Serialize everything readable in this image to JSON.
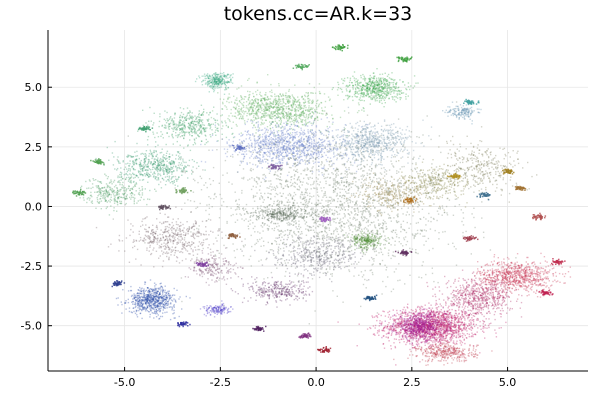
{
  "chart_data": {
    "type": "scatter",
    "title": "tokens.cc=AR.k=33",
    "xlabel": "",
    "ylabel": "",
    "xlim": [
      -7.0,
      7.1
    ],
    "ylim": [
      -6.9,
      7.4
    ],
    "grid": true,
    "legend": "none",
    "x_ticks": [
      -5.0,
      -2.5,
      0.0,
      2.5,
      5.0
    ],
    "x_tick_labels": [
      "-5.0",
      "-2.5",
      "0.0",
      "2.5",
      "5.0"
    ],
    "y_ticks": [
      5.0,
      2.5,
      0.0,
      -2.5,
      -5.0
    ],
    "y_tick_labels": [
      "5.0",
      "2.5",
      "0.0",
      "-2.5",
      "-5.0"
    ],
    "point_alpha": 0.35,
    "clusters": [
      {
        "x": 3.0,
        "y": -5.0,
        "sx": 1.1,
        "sy": 0.7,
        "n": 1500,
        "color": "#c0206a"
      },
      {
        "x": 5.2,
        "y": -2.9,
        "sx": 0.9,
        "sy": 0.6,
        "n": 800,
        "color": "#c8395a"
      },
      {
        "x": 2.7,
        "y": -5.0,
        "sx": 0.6,
        "sy": 0.5,
        "n": 600,
        "color": "#a01890"
      },
      {
        "x": 4.2,
        "y": -3.8,
        "sx": 0.8,
        "sy": 0.7,
        "n": 600,
        "color": "#b0306a"
      },
      {
        "x": 3.4,
        "y": -6.1,
        "sx": 0.7,
        "sy": 0.35,
        "n": 350,
        "color": "#c04050"
      },
      {
        "x": -4.3,
        "y": -3.9,
        "sx": 0.55,
        "sy": 0.5,
        "n": 650,
        "color": "#2a4ea8"
      },
      {
        "x": -2.6,
        "y": -4.3,
        "sx": 0.3,
        "sy": 0.2,
        "n": 140,
        "color": "#5040c8"
      },
      {
        "x": -1.0,
        "y": -3.5,
        "sx": 0.7,
        "sy": 0.45,
        "n": 300,
        "color": "#6a3c70"
      },
      {
        "x": 1.5,
        "y": 5.0,
        "sx": 0.7,
        "sy": 0.5,
        "n": 550,
        "color": "#40a850"
      },
      {
        "x": -2.6,
        "y": 5.3,
        "sx": 0.35,
        "sy": 0.3,
        "n": 280,
        "color": "#3aa880"
      },
      {
        "x": -1.0,
        "y": 4.1,
        "sx": 1.2,
        "sy": 0.7,
        "n": 900,
        "color": "#60b060"
      },
      {
        "x": -0.7,
        "y": 2.6,
        "sx": 1.3,
        "sy": 0.8,
        "n": 1000,
        "color": "#6a82c8"
      },
      {
        "x": 1.4,
        "y": 2.7,
        "sx": 0.9,
        "sy": 0.7,
        "n": 600,
        "color": "#7a9ab0"
      },
      {
        "x": -4.2,
        "y": 1.7,
        "sx": 0.9,
        "sy": 0.6,
        "n": 500,
        "color": "#3a9a70"
      },
      {
        "x": -5.3,
        "y": 0.6,
        "sx": 0.7,
        "sy": 0.6,
        "n": 300,
        "color": "#4a9a60"
      },
      {
        "x": -3.3,
        "y": 3.4,
        "sx": 0.8,
        "sy": 0.6,
        "n": 400,
        "color": "#3ea068"
      },
      {
        "x": 1.3,
        "y": -1.4,
        "sx": 0.35,
        "sy": 0.3,
        "n": 250,
        "color": "#4a8a30"
      },
      {
        "x": -0.9,
        "y": -0.3,
        "sx": 0.6,
        "sy": 0.3,
        "n": 250,
        "color": "#506050"
      },
      {
        "x": 3.8,
        "y": 4.0,
        "sx": 0.35,
        "sy": 0.25,
        "n": 150,
        "color": "#6090b0"
      },
      {
        "x": 3.1,
        "y": 1.0,
        "sx": 0.9,
        "sy": 0.6,
        "n": 350,
        "color": "#8a8a50"
      },
      {
        "x": 0.4,
        "y": 0.0,
        "sx": 2.8,
        "sy": 2.6,
        "n": 2200,
        "color": "#7a8a78"
      },
      {
        "x": -3.8,
        "y": -1.3,
        "sx": 1.0,
        "sy": 0.8,
        "n": 450,
        "color": "#7a6a70"
      },
      {
        "x": 4.3,
        "y": 1.7,
        "sx": 1.0,
        "sy": 0.9,
        "n": 300,
        "color": "#808060"
      },
      {
        "x": 2.0,
        "y": 0.5,
        "sx": 0.8,
        "sy": 0.6,
        "n": 250,
        "color": "#9a8a50"
      },
      {
        "x": -2.7,
        "y": -2.5,
        "sx": 0.6,
        "sy": 0.5,
        "n": 200,
        "color": "#805878"
      },
      {
        "x": 0.0,
        "y": -2.0,
        "sx": 1.0,
        "sy": 0.7,
        "n": 400,
        "color": "#6a6878"
      }
    ],
    "satellites": [
      {
        "x": 0.6,
        "y": 6.7,
        "color": "#40a040"
      },
      {
        "x": 2.3,
        "y": 6.2,
        "color": "#40a040"
      },
      {
        "x": -0.4,
        "y": 5.9,
        "color": "#55aa60"
      },
      {
        "x": 4.0,
        "y": 4.4,
        "color": "#40a0a0"
      },
      {
        "x": 3.6,
        "y": 1.3,
        "color": "#b09020"
      },
      {
        "x": 5.0,
        "y": 1.5,
        "color": "#a08020"
      },
      {
        "x": 5.3,
        "y": 0.8,
        "color": "#a07030"
      },
      {
        "x": 4.4,
        "y": 0.5,
        "color": "#407090"
      },
      {
        "x": 2.4,
        "y": 0.3,
        "color": "#b07020"
      },
      {
        "x": -6.2,
        "y": 0.6,
        "color": "#50a050"
      },
      {
        "x": -5.7,
        "y": 1.9,
        "color": "#50a050"
      },
      {
        "x": -4.5,
        "y": 3.3,
        "color": "#40a070"
      },
      {
        "x": -3.5,
        "y": 0.7,
        "color": "#70a060"
      },
      {
        "x": -4.0,
        "y": 0.0,
        "color": "#605060"
      },
      {
        "x": -1.1,
        "y": 1.7,
        "color": "#8060a0"
      },
      {
        "x": 0.2,
        "y": -0.5,
        "color": "#a060c0"
      },
      {
        "x": -2.2,
        "y": -1.2,
        "color": "#906040"
      },
      {
        "x": -3.0,
        "y": -2.4,
        "color": "#8040a0"
      },
      {
        "x": -3.5,
        "y": -4.9,
        "color": "#3030a0"
      },
      {
        "x": -1.5,
        "y": -5.1,
        "color": "#502060"
      },
      {
        "x": -0.3,
        "y": -5.4,
        "color": "#803080"
      },
      {
        "x": 0.2,
        "y": -6.0,
        "color": "#a02030"
      },
      {
        "x": 1.4,
        "y": -3.8,
        "color": "#205080"
      },
      {
        "x": 4.0,
        "y": -1.3,
        "color": "#a04050"
      },
      {
        "x": 5.8,
        "y": -0.4,
        "color": "#b05050"
      },
      {
        "x": 6.3,
        "y": -2.3,
        "color": "#c03050"
      },
      {
        "x": 6.0,
        "y": -3.6,
        "color": "#c02050"
      },
      {
        "x": -5.2,
        "y": -3.2,
        "color": "#304090"
      },
      {
        "x": 2.3,
        "y": -1.9,
        "color": "#603060"
      },
      {
        "x": -2.0,
        "y": 2.5,
        "color": "#6070c0"
      }
    ]
  }
}
